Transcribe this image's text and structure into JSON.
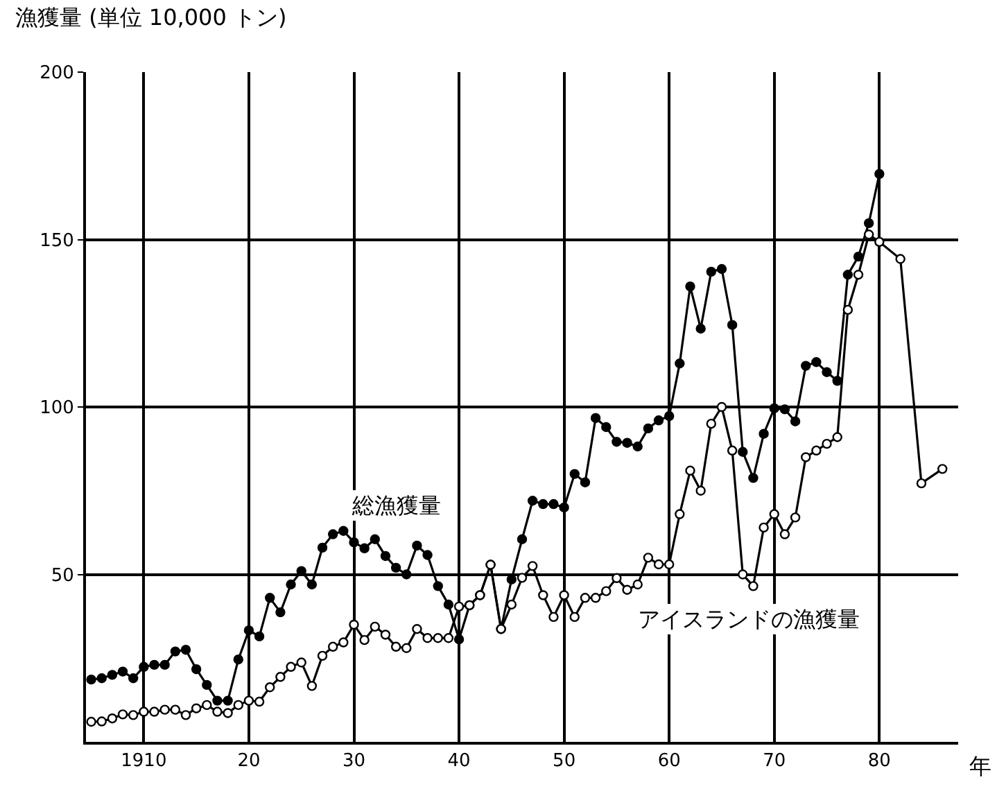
{
  "chart_data": {
    "type": "line",
    "ylabel": "漁獲量 (単位 10,000 トン)",
    "xlabel": "年",
    "xlim": [
      1904.5,
      1987.5
    ],
    "ylim": [
      0,
      200
    ],
    "xticks": [
      {
        "value": 1910,
        "label": "1910"
      },
      {
        "value": 1920,
        "label": "20"
      },
      {
        "value": 1930,
        "label": "30"
      },
      {
        "value": 1940,
        "label": "40"
      },
      {
        "value": 1950,
        "label": "50"
      },
      {
        "value": 1960,
        "label": "60"
      },
      {
        "value": 1970,
        "label": "70"
      },
      {
        "value": 1980,
        "label": "80"
      }
    ],
    "yticks": [
      50,
      100,
      150,
      200
    ],
    "grid": true,
    "legend": false,
    "line_style": "solid",
    "series": [
      {
        "name": "総漁獲量",
        "color": "#000000",
        "marker": "circle",
        "x": [
          1905,
          1906,
          1907,
          1908,
          1909,
          1910,
          1911,
          1912,
          1913,
          1914,
          1915,
          1916,
          1917,
          1918,
          1919,
          1920,
          1921,
          1922,
          1923,
          1924,
          1925,
          1926,
          1927,
          1928,
          1929,
          1930,
          1931,
          1932,
          1933,
          1934,
          1935,
          1936,
          1937,
          1938,
          1939,
          1940,
          1941,
          1942,
          1943,
          1944,
          1945,
          1946,
          1947,
          1948,
          1949,
          1950,
          1951,
          1952,
          1953,
          1954,
          1955,
          1956,
          1957,
          1958,
          1959,
          1960,
          1961,
          1962,
          1963,
          1964,
          1965,
          1966,
          1967,
          1968,
          1969,
          1970,
          1971,
          1972,
          1973,
          1974,
          1975,
          1976,
          1977,
          1978,
          1979,
          1980
        ],
        "values": [
          18.6,
          19,
          20,
          21,
          19,
          22.4,
          23,
          23,
          27,
          27.5,
          21.7,
          17,
          12.3,
          12.3,
          24.6,
          33.3,
          31.5,
          43,
          38.7,
          47,
          51,
          47,
          58,
          62,
          63,
          59.6,
          57.8,
          60.5,
          55.5,
          52,
          50,
          58.6,
          55.8,
          46.5,
          41,
          30.6,
          40.8,
          43.8,
          52.9,
          33.7,
          48.5,
          60.5,
          72,
          71,
          71,
          70,
          80,
          77.5,
          96.7,
          94,
          89.6,
          89.3,
          88.2,
          93.6,
          96,
          97.3,
          113,
          136,
          123.4,
          140.4,
          141.2,
          124.5,
          86.6,
          78.8,
          92,
          99.6,
          99.3,
          95.7,
          112.3,
          113.4,
          110.4,
          107.8,
          139.5,
          144.9,
          154.9,
          169.6
        ]
      },
      {
        "name": "アイスランドの漁獲量",
        "color": "#000000",
        "marker": "circle-open",
        "x": [
          1905,
          1906,
          1907,
          1908,
          1909,
          1910,
          1911,
          1912,
          1913,
          1914,
          1915,
          1916,
          1917,
          1918,
          1919,
          1920,
          1921,
          1922,
          1923,
          1924,
          1925,
          1926,
          1927,
          1928,
          1929,
          1930,
          1931,
          1932,
          1933,
          1934,
          1935,
          1936,
          1937,
          1938,
          1939,
          1940,
          1941,
          1942,
          1943,
          1944,
          1945,
          1946,
          1947,
          1948,
          1949,
          1950,
          1951,
          1952,
          1953,
          1954,
          1955,
          1956,
          1957,
          1958,
          1959,
          1960,
          1961,
          1962,
          1963,
          1964,
          1965,
          1966,
          1967,
          1968,
          1969,
          1970,
          1971,
          1972,
          1973,
          1974,
          1975,
          1976,
          1977,
          1978,
          1979,
          1980,
          1982,
          1984,
          1986
        ],
        "values": [
          6,
          6.1,
          7,
          8.2,
          8,
          9,
          9,
          9.6,
          9.6,
          8,
          10,
          11,
          9,
          8.6,
          11,
          12.3,
          12,
          16.3,
          19.4,
          22.4,
          23.7,
          16.7,
          25.7,
          28.4,
          29.7,
          35,
          30.4,
          34.4,
          32,
          28.4,
          28,
          33.7,
          31,
          31,
          31,
          40.4,
          40.8,
          43.8,
          52.9,
          33.7,
          41,
          49,
          52.5,
          43.8,
          37.3,
          43.8,
          37.3,
          43,
          43,
          45,
          48.9,
          45.4,
          47,
          55,
          53,
          53,
          68,
          81,
          75,
          95,
          100,
          87,
          50,
          46.5,
          64,
          68,
          62,
          67,
          85,
          87,
          89,
          91,
          129,
          139.5,
          151.5,
          149.3,
          144.2,
          77.2,
          81.5
        ]
      }
    ]
  }
}
